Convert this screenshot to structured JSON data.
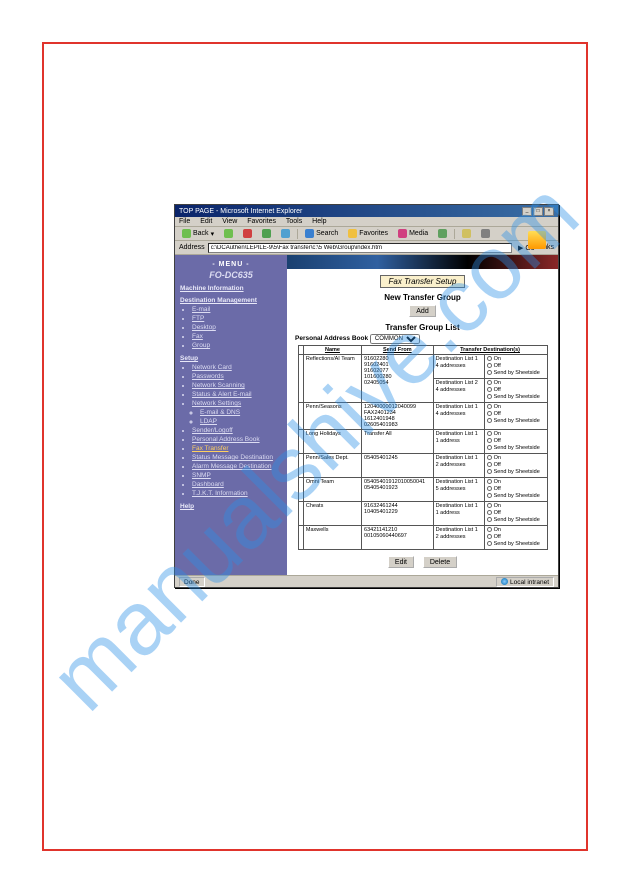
{
  "window": {
    "title": "TOP PAGE - Microsoft Internet Explorer"
  },
  "menubar": {
    "file": "File",
    "edit": "Edit",
    "view": "View",
    "favorites": "Favorites",
    "tools": "Tools",
    "help": "Help"
  },
  "toolbar": {
    "back": "Back",
    "search": "Search",
    "favorites": "Favorites",
    "media": "Media",
    "back_color": "#6fbf4f",
    "search_color": "#3a80d0",
    "fav_color": "#f0c040",
    "media_color": "#d04080"
  },
  "address": {
    "label": "Address",
    "value": "c:\\DCAuthen\\LEPILE-9\\5\\Fax transfer\\c:\\5 Web\\Group\\index.htm",
    "go": "Go",
    "links": "Links"
  },
  "sidebar": {
    "menu_label": "- MENU -",
    "product": "FO-DC635",
    "sec_machine": "Machine Information",
    "sec_dest": "Destination Management",
    "items1": [
      {
        "label": "E-mail"
      },
      {
        "label": "FTP"
      },
      {
        "label": "Desktop"
      },
      {
        "label": "Fax"
      },
      {
        "label": "Group"
      }
    ],
    "sec_setup": "Setup",
    "items2": [
      {
        "label": "Network Card"
      },
      {
        "label": "Passwords"
      },
      {
        "label": "Network Scanning"
      },
      {
        "label": "Status & Alert E-mail"
      },
      {
        "label": "Network Settings"
      },
      {
        "label": "Sender/Logoff"
      },
      {
        "label": "Personal Address Book"
      },
      {
        "label": "Fax Transfer",
        "hl": true
      },
      {
        "label": "Status Message Destination"
      },
      {
        "label": "Alarm Message Destination"
      },
      {
        "label": "SNMP"
      },
      {
        "label": "Dashboard"
      },
      {
        "label": "T.J.K.T. Information"
      }
    ],
    "items2sub": [
      {
        "label": "E-mail & DNS"
      },
      {
        "label": "LDAP"
      }
    ],
    "sec_help": "Help"
  },
  "main": {
    "heading": "Fax Transfer Setup",
    "new_group": "New Transfer Group",
    "add": "Add",
    "list_title": "Transfer Group List",
    "pab_label": "Personal Address Book",
    "pab_value": "COMMON",
    "cols": {
      "name": "Name",
      "from": "Send From",
      "dest": "Transfer Destination(s)"
    },
    "opts": {
      "on": "On",
      "off": "Off",
      "sched": "Send by Sheetside"
    },
    "rows": [
      {
        "name": "Reflections/AI Team",
        "from": "91602280\n91602401\n91602077\n101600280\n02405054",
        "dests": [
          "Destination List 1\n4 addresses",
          "Destination List 2\n4 addresses"
        ]
      },
      {
        "name": "Penn/Seasons",
        "from": "12040000012040099\nFAX2401234\n1612401948\n02605401983",
        "dests": [
          "Destination List 1\n4 addresses"
        ]
      },
      {
        "name": "Long Holidays",
        "from": "Transfer All",
        "dests": [
          "Destination List 1\n1 address"
        ]
      },
      {
        "name": "Penn/Sales Dept.",
        "from": "05405401245",
        "dests": [
          "Destination List 1\n2 addresses"
        ]
      },
      {
        "name": "Omni Team",
        "from": "05405401912010050041\n05405401923",
        "dests": [
          "Destination List 1\n5 addresses"
        ]
      },
      {
        "name": "Cheats",
        "from": "91632461244\n10405401229",
        "dests": [
          "Destination List 1\n1 address"
        ]
      },
      {
        "name": "Maxwells",
        "from": "63421141210\n00105060440697",
        "dests": [
          "Destination List 1\n2 addresses"
        ]
      }
    ],
    "edit": "Edit",
    "delete": "Delete"
  },
  "status": {
    "done": "Done",
    "zone": "Local intranet"
  },
  "watermark": "manualshive.com"
}
